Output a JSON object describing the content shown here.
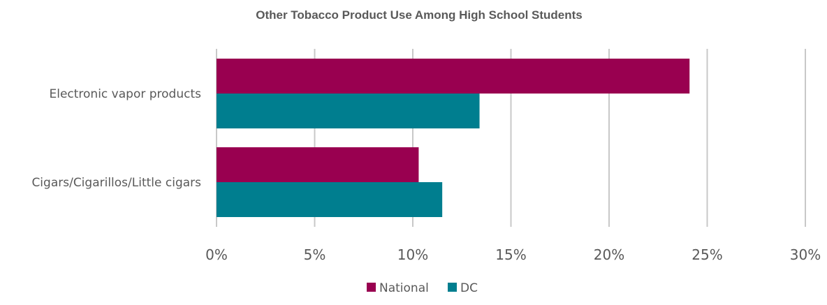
{
  "chart_data": {
    "type": "bar",
    "orientation": "horizontal",
    "title": "Other Tobacco Product Use Among High School Students",
    "categories": [
      "Electronic vapor products",
      "Cigars/Cigarillos/Little cigars"
    ],
    "series": [
      {
        "name": "National",
        "values": [
          24.1,
          10.3
        ],
        "color": "#990050"
      },
      {
        "name": "DC",
        "values": [
          13.4,
          11.5
        ],
        "color": "#007E8F"
      }
    ],
    "xlim": [
      0,
      30
    ],
    "xticks": [
      0,
      5,
      10,
      15,
      20,
      25,
      30
    ],
    "tick_format": "percent",
    "grid": "vertical",
    "legend_position": "bottom"
  }
}
